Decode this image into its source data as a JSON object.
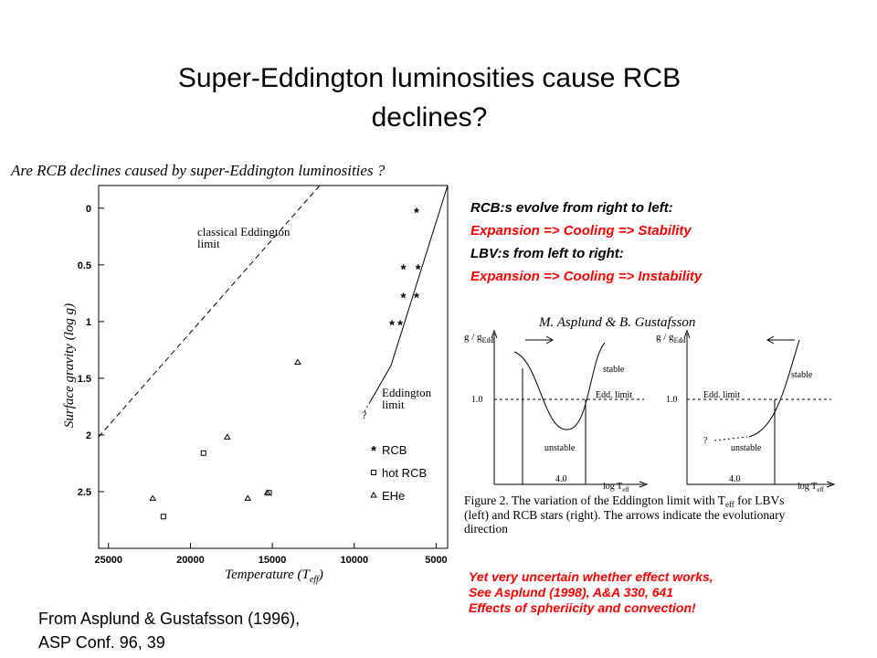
{
  "title": "Super-Eddington luminosities cause RCB declines?",
  "notes": [
    {
      "text": "RCB:s evolve from right to left:",
      "color": "#000000"
    },
    {
      "text": "Expansion  => Cooling => Stability",
      "color": "#ff0000"
    },
    {
      "text": "LBV:s from left to right:",
      "color": "#000000"
    },
    {
      "text": "Expansion => Cooling => Instability",
      "color": "#ff0000"
    }
  ],
  "caveats": [
    "Yet very uncertain whether effect works,",
    "See Asplund (1998), A&A 330, 641",
    "Effects of spheriicity and convection!"
  ],
  "source": [
    "From Asplund & Gustafsson (1996),",
    "ASP Conf. 96, 39"
  ],
  "chart_data": {
    "type": "scatter",
    "title": "Are RCB declines caused by super-Eddington luminosities ?",
    "xlabel": [
      "Temperature (T",
      "eff",
      ")"
    ],
    "ylabel": [
      "Surface gravity (log g)"
    ],
    "xlim": [
      25600,
      4300
    ],
    "ylim": [
      -0.2,
      3.0
    ],
    "xticks": [
      25000,
      20000,
      15000,
      10000,
      5000
    ],
    "yticks": [
      0,
      0.5,
      1,
      1.5,
      2,
      2.5
    ],
    "legend": "lower right",
    "annotations": [
      "classical Eddington",
      "limit",
      "Eddington",
      "limit",
      "?"
    ],
    "series": [
      {
        "name": "RCB",
        "marker": "star",
        "color": "#000000",
        "x": [
          6200,
          7000,
          6100,
          7000,
          6200,
          7700,
          7200
        ],
        "values": [
          0.03,
          0.53,
          0.53,
          0.78,
          0.78,
          1.02,
          1.02
        ]
      },
      {
        "name": "hot RCB",
        "marker": "square",
        "color": "#000000",
        "x": [
          19200,
          21650,
          15200
        ],
        "values": [
          2.16,
          2.72,
          2.51
        ]
      },
      {
        "name": "EHe",
        "marker": "triangle",
        "color": "#000000",
        "x": [
          22300,
          17750,
          16500,
          15300,
          13450
        ],
        "values": [
          2.56,
          2.02,
          2.56,
          2.51,
          1.36
        ]
      }
    ]
  },
  "figure2": {
    "authors": "M. Asplund & B. Gustafsson",
    "ylabel_left": [
      "g / g",
      "Edd"
    ],
    "ylabel_right": [
      "g / g",
      "Edd"
    ],
    "stable_left": "stable",
    "stable_right": "stable",
    "unstable_left": "unstable",
    "unstable_right": "unstable",
    "one_left": "1.0",
    "one_right": "1.0",
    "edd_left": "Edd. limit",
    "edd_right": "Edd. limit",
    "four_left": "4.0",
    "four_right": "4.0",
    "logt_left": [
      "log T",
      "eff"
    ],
    "logt_right": [
      "log T",
      "eff"
    ],
    "question": "?",
    "caption": [
      "Figure 2.    The variation of the Eddington limit with T",
      "eff",
      " for LBVs",
      "(left)  and  RCB  stars  (right).   The  arrows  indicate  the  evolutionary",
      "direction"
    ]
  }
}
